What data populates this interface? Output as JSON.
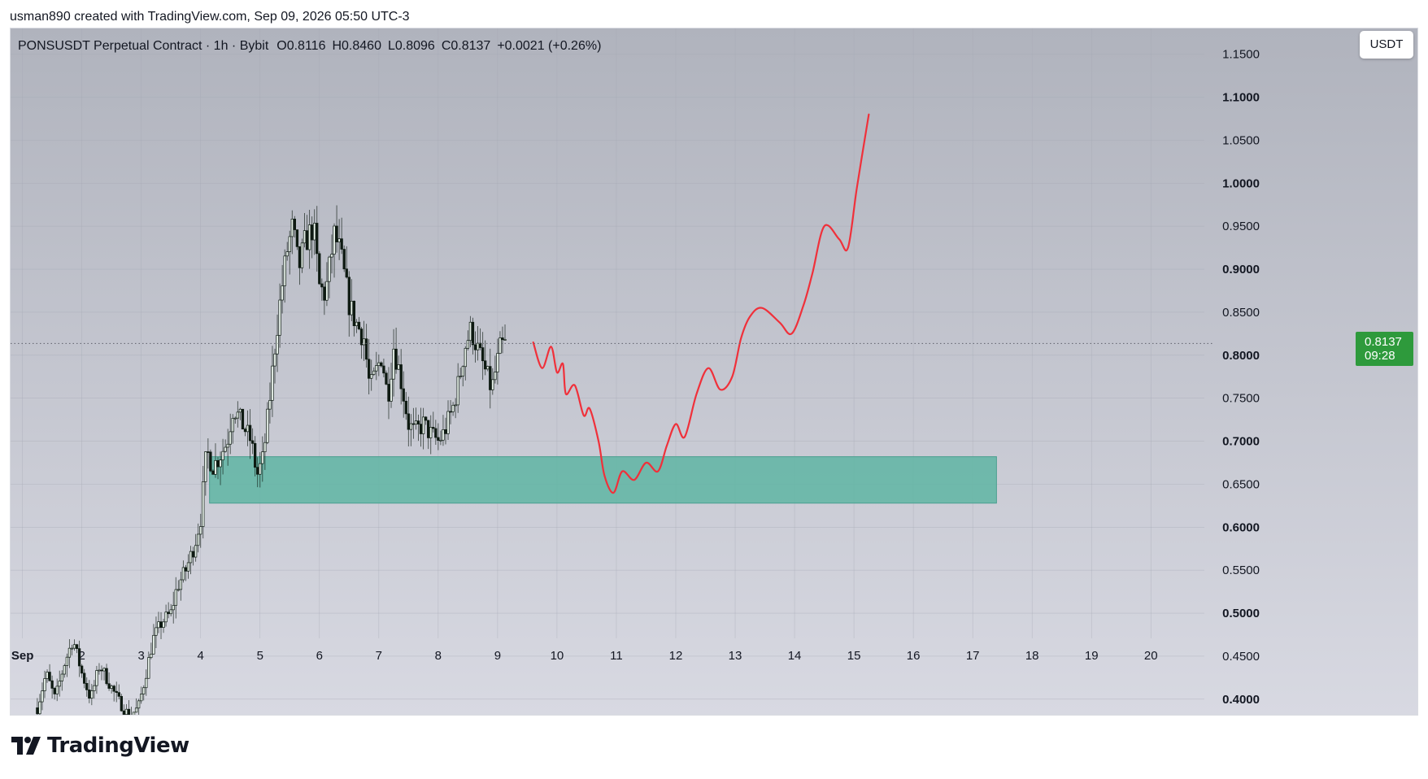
{
  "caption": "usman890 created with TradingView.com, Sep 09, 2026 05:50 UTC-3",
  "header": {
    "symbol": "PONSUSDT Perpetual Contract · 1h · Bybit",
    "open": "O0.8116",
    "high": "H0.8460",
    "low": "L0.8096",
    "close": "C0.8137",
    "change": "+0.0021 (+0.26%)"
  },
  "currency_button": "USDT",
  "last_price_label": {
    "price": "0.8137",
    "countdown": "09:28"
  },
  "brand": {
    "wordmark": "TradingView",
    "icon": "tradingview-logo-icon"
  },
  "colors": {
    "background_top": "#b0b3bd",
    "background_bottom": "#d8d9e2",
    "candle": "#0e1a12",
    "zone": "#5fb5a3",
    "projection": "#f0303a",
    "last_price_badge": "#2e9a3c"
  },
  "chart_data": {
    "type": "candlestick",
    "title": "PONSUSDT Perpetual Contract · 1h · Bybit",
    "ylim": [
      0.38,
      1.18
    ],
    "y_ticks": [
      "0.4000",
      "0.4500",
      "0.5000",
      "0.5500",
      "0.6000",
      "0.6500",
      "0.7000",
      "0.7500",
      "0.8000",
      "0.8500",
      "0.9000",
      "0.9500",
      "1.0000",
      "1.0500",
      "1.1000",
      "1.1500"
    ],
    "x_ticks": [
      "Sep",
      "2",
      "3",
      "4",
      "5",
      "6",
      "7",
      "8",
      "9",
      "10",
      "11",
      "12",
      "13",
      "14",
      "15",
      "16",
      "17",
      "18",
      "19",
      "20"
    ],
    "x_range_days": [
      0.8,
      20.9
    ],
    "grid": true,
    "last_price": 0.8137,
    "support_zone": {
      "x_start": 4.15,
      "x_end": 17.4,
      "y_low": 0.628,
      "y_high": 0.682
    },
    "price_path": [
      [
        1.25,
        0.39
      ],
      [
        1.4,
        0.43
      ],
      [
        1.55,
        0.4
      ],
      [
        1.7,
        0.44
      ],
      [
        1.85,
        0.47
      ],
      [
        2.0,
        0.43
      ],
      [
        2.15,
        0.4
      ],
      [
        2.3,
        0.44
      ],
      [
        2.45,
        0.42
      ],
      [
        2.6,
        0.4
      ],
      [
        2.8,
        0.38
      ],
      [
        2.95,
        0.39
      ],
      [
        3.05,
        0.42
      ],
      [
        3.2,
        0.47
      ],
      [
        3.35,
        0.49
      ],
      [
        3.5,
        0.5
      ],
      [
        3.6,
        0.53
      ],
      [
        3.75,
        0.55
      ],
      [
        3.9,
        0.58
      ],
      [
        4.0,
        0.61
      ],
      [
        4.1,
        0.69
      ],
      [
        4.2,
        0.67
      ],
      [
        4.3,
        0.68
      ],
      [
        4.45,
        0.7
      ],
      [
        4.55,
        0.74
      ],
      [
        4.7,
        0.72
      ],
      [
        4.85,
        0.7
      ],
      [
        4.95,
        0.66
      ],
      [
        5.05,
        0.68
      ],
      [
        5.15,
        0.74
      ],
      [
        5.25,
        0.81
      ],
      [
        5.35,
        0.87
      ],
      [
        5.45,
        0.92
      ],
      [
        5.55,
        0.95
      ],
      [
        5.65,
        0.9
      ],
      [
        5.75,
        0.93
      ],
      [
        5.9,
        0.95
      ],
      [
        6.0,
        0.88
      ],
      [
        6.1,
        0.87
      ],
      [
        6.25,
        0.94
      ],
      [
        6.35,
        0.92
      ],
      [
        6.5,
        0.86
      ],
      [
        6.6,
        0.84
      ],
      [
        6.75,
        0.82
      ],
      [
        6.85,
        0.76
      ],
      [
        6.95,
        0.78
      ],
      [
        7.05,
        0.8
      ],
      [
        7.15,
        0.75
      ],
      [
        7.25,
        0.81
      ],
      [
        7.35,
        0.78
      ],
      [
        7.5,
        0.72
      ],
      [
        7.6,
        0.71
      ],
      [
        7.75,
        0.72
      ],
      [
        7.85,
        0.71
      ],
      [
        8.0,
        0.7
      ],
      [
        8.1,
        0.71
      ],
      [
        8.25,
        0.74
      ],
      [
        8.35,
        0.77
      ],
      [
        8.45,
        0.81
      ],
      [
        8.55,
        0.83
      ],
      [
        8.7,
        0.8
      ],
      [
        8.8,
        0.78
      ],
      [
        8.9,
        0.76
      ],
      [
        9.05,
        0.81
      ],
      [
        9.15,
        0.8137
      ]
    ],
    "projection_path": [
      [
        9.6,
        0.815
      ],
      [
        9.75,
        0.785
      ],
      [
        9.9,
        0.81
      ],
      [
        10.0,
        0.78
      ],
      [
        10.1,
        0.79
      ],
      [
        10.15,
        0.755
      ],
      [
        10.3,
        0.765
      ],
      [
        10.45,
        0.73
      ],
      [
        10.55,
        0.738
      ],
      [
        10.7,
        0.7
      ],
      [
        10.8,
        0.66
      ],
      [
        10.95,
        0.64
      ],
      [
        11.1,
        0.665
      ],
      [
        11.3,
        0.655
      ],
      [
        11.5,
        0.675
      ],
      [
        11.7,
        0.665
      ],
      [
        11.85,
        0.695
      ],
      [
        12.0,
        0.72
      ],
      [
        12.15,
        0.705
      ],
      [
        12.35,
        0.755
      ],
      [
        12.55,
        0.785
      ],
      [
        12.75,
        0.76
      ],
      [
        12.95,
        0.775
      ],
      [
        13.1,
        0.82
      ],
      [
        13.25,
        0.845
      ],
      [
        13.45,
        0.855
      ],
      [
        13.75,
        0.838
      ],
      [
        13.95,
        0.825
      ],
      [
        14.15,
        0.858
      ],
      [
        14.3,
        0.895
      ],
      [
        14.5,
        0.95
      ],
      [
        14.75,
        0.935
      ],
      [
        14.9,
        0.925
      ],
      [
        15.05,
        0.995
      ],
      [
        15.25,
        1.08
      ]
    ]
  }
}
